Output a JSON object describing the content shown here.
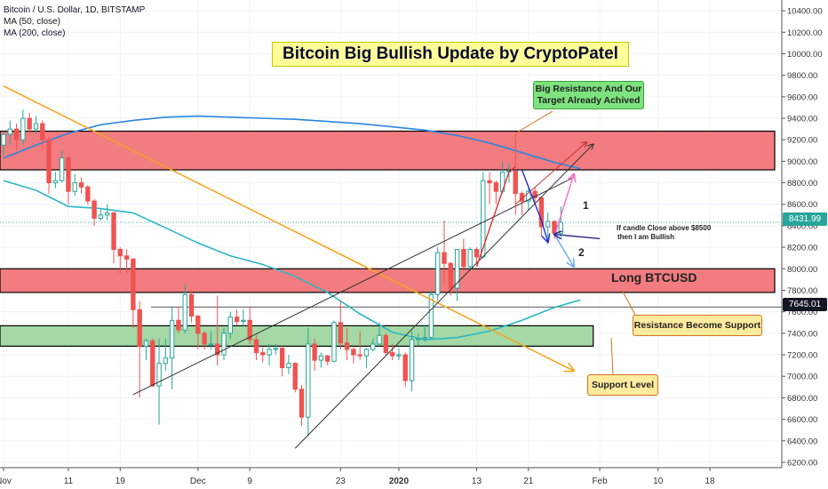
{
  "header": {
    "symbol_line": "Bitcoin / U.S. Dollar, 1D, BITSTAMP",
    "ma50_label": "MA (50, close)",
    "ma200_label": "MA (200, close)"
  },
  "annotations": {
    "title": "Bitcoin Big Bullish Update by CryptoPatel",
    "target_line1": "Big Resistance And Our",
    "target_line2": "Target Already Achived",
    "bullish_line1": "If candle Close above $8500",
    "bullish_line2": "then I am Bullish",
    "long_label": "Long BTCUSD",
    "resistance_support": "Resistance Become Support",
    "support_level": "Support Level",
    "wave1": "1",
    "wave2": "2"
  },
  "colors": {
    "up": "#26a69a",
    "down": "#ef5350",
    "ma50": "#2bb6c6",
    "ma200": "#2a86e0",
    "resistance_zone": "#f27c80",
    "support_zone": "#a4d8a4",
    "trendline_orange": "#f5a623"
  },
  "chart_data": {
    "type": "candlestick",
    "title": "",
    "y_range": [
      6150,
      10500
    ],
    "y_ticks": [
      6200,
      6400,
      6600,
      6800,
      7000,
      7200,
      7400,
      7600,
      7800,
      8000,
      8200,
      8400,
      8600,
      8800,
      9000,
      9200,
      9400,
      9600,
      9800,
      10000,
      10200,
      10400
    ],
    "y_tick_labels": [
      "6200.00",
      "6400.00",
      "6600.00",
      "6800.00",
      "7000.00",
      "7200.00",
      "7400.00",
      "7600.00",
      "7800.00",
      "8000.00",
      "8200.00",
      "8400.00",
      "8600.00",
      "8800.00",
      "9000.00",
      "9200.00",
      "9400.00",
      "9600.00",
      "9800.00",
      "10000.00",
      "10200.00",
      "10400.00"
    ],
    "x_range": [
      "2019-11-01",
      "2020-02-28"
    ],
    "x_ticks": [
      {
        "date": "2019-11-01",
        "label": "Nov"
      },
      {
        "date": "2019-11-11",
        "label": "11"
      },
      {
        "date": "2019-11-19",
        "label": "19"
      },
      {
        "date": "2019-12-01",
        "label": "Dec"
      },
      {
        "date": "2019-12-09",
        "label": "9"
      },
      {
        "date": "2019-12-23",
        "label": "23"
      },
      {
        "date": "2020-01-01",
        "label": "2020"
      },
      {
        "date": "2020-01-13",
        "label": "13"
      },
      {
        "date": "2020-01-21",
        "label": "21"
      },
      {
        "date": "2020-02-01",
        "label": "Feb"
      },
      {
        "date": "2020-02-10",
        "label": "10"
      },
      {
        "date": "2020-02-18",
        "label": "18"
      }
    ],
    "current_price": {
      "value": 8431.99,
      "label": "8431.99"
    },
    "level_price": {
      "value": 7645.01,
      "label": "7645.01"
    },
    "zones": [
      {
        "name": "resistance-zone-upper",
        "y": [
          8920,
          9280
        ],
        "x": [
          "2019-11-01",
          "2020-02-28"
        ]
      },
      {
        "name": "resistance-zone-lower",
        "y": [
          7780,
          8000
        ],
        "x": [
          "2019-11-01",
          "2020-02-28"
        ]
      },
      {
        "name": "support-zone",
        "y": [
          7280,
          7470
        ],
        "x": [
          "2019-11-01",
          "2020-01-31"
        ]
      }
    ],
    "candles": [
      {
        "d": "2019-11-01",
        "o": 9150,
        "h": 9280,
        "l": 9050,
        "c": 9250
      },
      {
        "d": "2019-11-02",
        "o": 9250,
        "h": 9380,
        "l": 9150,
        "c": 9300
      },
      {
        "d": "2019-11-03",
        "o": 9300,
        "h": 9350,
        "l": 9100,
        "c": 9200
      },
      {
        "d": "2019-11-04",
        "o": 9200,
        "h": 9480,
        "l": 9150,
        "c": 9400
      },
      {
        "d": "2019-11-05",
        "o": 9400,
        "h": 9450,
        "l": 9250,
        "c": 9300
      },
      {
        "d": "2019-11-06",
        "o": 9300,
        "h": 9420,
        "l": 9250,
        "c": 9350
      },
      {
        "d": "2019-11-07",
        "o": 9350,
        "h": 9380,
        "l": 9100,
        "c": 9200
      },
      {
        "d": "2019-11-08",
        "o": 9200,
        "h": 9230,
        "l": 8700,
        "c": 8800
      },
      {
        "d": "2019-11-09",
        "o": 8800,
        "h": 8900,
        "l": 8750,
        "c": 8820
      },
      {
        "d": "2019-11-10",
        "o": 8820,
        "h": 9100,
        "l": 8800,
        "c": 9030
      },
      {
        "d": "2019-11-11",
        "o": 9030,
        "h": 9050,
        "l": 8600,
        "c": 8720
      },
      {
        "d": "2019-11-12",
        "o": 8720,
        "h": 8880,
        "l": 8680,
        "c": 8800
      },
      {
        "d": "2019-11-13",
        "o": 8800,
        "h": 8850,
        "l": 8700,
        "c": 8760
      },
      {
        "d": "2019-11-14",
        "o": 8760,
        "h": 8780,
        "l": 8600,
        "c": 8630
      },
      {
        "d": "2019-11-15",
        "o": 8630,
        "h": 8650,
        "l": 8400,
        "c": 8470
      },
      {
        "d": "2019-11-16",
        "o": 8470,
        "h": 8550,
        "l": 8450,
        "c": 8500
      },
      {
        "d": "2019-11-17",
        "o": 8500,
        "h": 8600,
        "l": 8450,
        "c": 8520
      },
      {
        "d": "2019-11-18",
        "o": 8520,
        "h": 8530,
        "l": 8050,
        "c": 8180
      },
      {
        "d": "2019-11-19",
        "o": 8180,
        "h": 8200,
        "l": 7950,
        "c": 8120
      },
      {
        "d": "2019-11-20",
        "o": 8120,
        "h": 8180,
        "l": 7950,
        "c": 8090
      },
      {
        "d": "2019-11-21",
        "o": 8090,
        "h": 8100,
        "l": 7450,
        "c": 7620
      },
      {
        "d": "2019-11-22",
        "o": 7620,
        "h": 7700,
        "l": 6800,
        "c": 7280
      },
      {
        "d": "2019-11-23",
        "o": 7280,
        "h": 7350,
        "l": 7150,
        "c": 7330
      },
      {
        "d": "2019-11-24",
        "o": 7330,
        "h": 7350,
        "l": 6900,
        "c": 6910
      },
      {
        "d": "2019-11-25",
        "o": 6910,
        "h": 7350,
        "l": 6550,
        "c": 7120
      },
      {
        "d": "2019-11-26",
        "o": 7120,
        "h": 7350,
        "l": 7050,
        "c": 7170
      },
      {
        "d": "2019-11-27",
        "o": 7170,
        "h": 7650,
        "l": 6880,
        "c": 7520
      },
      {
        "d": "2019-11-28",
        "o": 7520,
        "h": 7650,
        "l": 7400,
        "c": 7430
      },
      {
        "d": "2019-11-29",
        "o": 7430,
        "h": 7860,
        "l": 7400,
        "c": 7760
      },
      {
        "d": "2019-11-30",
        "o": 7760,
        "h": 7800,
        "l": 7500,
        "c": 7560
      },
      {
        "d": "2019-12-01",
        "o": 7560,
        "h": 7570,
        "l": 7250,
        "c": 7400
      },
      {
        "d": "2019-12-02",
        "o": 7400,
        "h": 7420,
        "l": 7250,
        "c": 7300
      },
      {
        "d": "2019-12-03",
        "o": 7300,
        "h": 7420,
        "l": 7250,
        "c": 7300
      },
      {
        "d": "2019-12-04",
        "o": 7300,
        "h": 7750,
        "l": 7100,
        "c": 7200
      },
      {
        "d": "2019-12-05",
        "o": 7200,
        "h": 7450,
        "l": 7150,
        "c": 7400
      },
      {
        "d": "2019-12-06",
        "o": 7400,
        "h": 7600,
        "l": 7350,
        "c": 7550
      },
      {
        "d": "2019-12-07",
        "o": 7550,
        "h": 7620,
        "l": 7480,
        "c": 7510
      },
      {
        "d": "2019-12-08",
        "o": 7510,
        "h": 7620,
        "l": 7460,
        "c": 7520
      },
      {
        "d": "2019-12-09",
        "o": 7520,
        "h": 7650,
        "l": 7300,
        "c": 7340
      },
      {
        "d": "2019-12-10",
        "o": 7340,
        "h": 7380,
        "l": 7150,
        "c": 7220
      },
      {
        "d": "2019-12-11",
        "o": 7220,
        "h": 7270,
        "l": 7130,
        "c": 7200
      },
      {
        "d": "2019-12-12",
        "o": 7200,
        "h": 7300,
        "l": 7100,
        "c": 7250
      },
      {
        "d": "2019-12-13",
        "o": 7250,
        "h": 7300,
        "l": 7200,
        "c": 7260
      },
      {
        "d": "2019-12-14",
        "o": 7260,
        "h": 7290,
        "l": 7000,
        "c": 7080
      },
      {
        "d": "2019-12-15",
        "o": 7080,
        "h": 7200,
        "l": 7020,
        "c": 7120
      },
      {
        "d": "2019-12-16",
        "o": 7120,
        "h": 7130,
        "l": 6850,
        "c": 6880
      },
      {
        "d": "2019-12-17",
        "o": 6880,
        "h": 6920,
        "l": 6540,
        "c": 6620
      },
      {
        "d": "2019-12-18",
        "o": 6620,
        "h": 7450,
        "l": 6450,
        "c": 7300
      },
      {
        "d": "2019-12-19",
        "o": 7300,
        "h": 7350,
        "l": 7050,
        "c": 7150
      },
      {
        "d": "2019-12-20",
        "o": 7150,
        "h": 7220,
        "l": 7080,
        "c": 7190
      },
      {
        "d": "2019-12-21",
        "o": 7190,
        "h": 7200,
        "l": 7100,
        "c": 7140
      },
      {
        "d": "2019-12-22",
        "o": 7140,
        "h": 7520,
        "l": 7130,
        "c": 7500
      },
      {
        "d": "2019-12-23",
        "o": 7500,
        "h": 7700,
        "l": 7250,
        "c": 7310
      },
      {
        "d": "2019-12-24",
        "o": 7310,
        "h": 7450,
        "l": 7150,
        "c": 7250
      },
      {
        "d": "2019-12-25",
        "o": 7250,
        "h": 7270,
        "l": 7120,
        "c": 7200
      },
      {
        "d": "2019-12-26",
        "o": 7200,
        "h": 7420,
        "l": 7150,
        "c": 7190
      },
      {
        "d": "2019-12-27",
        "o": 7190,
        "h": 7260,
        "l": 7080,
        "c": 7250
      },
      {
        "d": "2019-12-28",
        "o": 7250,
        "h": 7350,
        "l": 7230,
        "c": 7300
      },
      {
        "d": "2019-12-29",
        "o": 7300,
        "h": 7500,
        "l": 7280,
        "c": 7380
      },
      {
        "d": "2019-12-30",
        "o": 7380,
        "h": 7400,
        "l": 7200,
        "c": 7220
      },
      {
        "d": "2019-12-31",
        "o": 7220,
        "h": 7300,
        "l": 7150,
        "c": 7190
      },
      {
        "d": "2020-01-01",
        "o": 7190,
        "h": 7260,
        "l": 7150,
        "c": 7200
      },
      {
        "d": "2020-01-02",
        "o": 7200,
        "h": 7220,
        "l": 6900,
        "c": 6960
      },
      {
        "d": "2020-01-03",
        "o": 6960,
        "h": 7420,
        "l": 6860,
        "c": 7340
      },
      {
        "d": "2020-01-04",
        "o": 7340,
        "h": 7400,
        "l": 7280,
        "c": 7350
      },
      {
        "d": "2020-01-05",
        "o": 7350,
        "h": 7480,
        "l": 7320,
        "c": 7360
      },
      {
        "d": "2020-01-06",
        "o": 7360,
        "h": 7800,
        "l": 7350,
        "c": 7760
      },
      {
        "d": "2020-01-07",
        "o": 7760,
        "h": 8200,
        "l": 7700,
        "c": 8150
      },
      {
        "d": "2020-01-08",
        "o": 8150,
        "h": 8450,
        "l": 7870,
        "c": 8050
      },
      {
        "d": "2020-01-09",
        "o": 8050,
        "h": 8060,
        "l": 7750,
        "c": 7820
      },
      {
        "d": "2020-01-10",
        "o": 7820,
        "h": 8180,
        "l": 7700,
        "c": 8180
      },
      {
        "d": "2020-01-11",
        "o": 8180,
        "h": 8280,
        "l": 8000,
        "c": 8020
      },
      {
        "d": "2020-01-12",
        "o": 8020,
        "h": 8200,
        "l": 7980,
        "c": 8180
      },
      {
        "d": "2020-01-13",
        "o": 8180,
        "h": 8200,
        "l": 8050,
        "c": 8110
      },
      {
        "d": "2020-01-14",
        "o": 8110,
        "h": 8900,
        "l": 8100,
        "c": 8820
      },
      {
        "d": "2020-01-15",
        "o": 8820,
        "h": 8900,
        "l": 8600,
        "c": 8800
      },
      {
        "d": "2020-01-16",
        "o": 8800,
        "h": 8820,
        "l": 8600,
        "c": 8720
      },
      {
        "d": "2020-01-17",
        "o": 8720,
        "h": 9000,
        "l": 8700,
        "c": 8900
      },
      {
        "d": "2020-01-18",
        "o": 8900,
        "h": 8980,
        "l": 8800,
        "c": 8910
      },
      {
        "d": "2020-01-19",
        "o": 8910,
        "h": 9180,
        "l": 8500,
        "c": 8700
      },
      {
        "d": "2020-01-20",
        "o": 8700,
        "h": 8720,
        "l": 8500,
        "c": 8630
      },
      {
        "d": "2020-01-21",
        "o": 8630,
        "h": 8750,
        "l": 8550,
        "c": 8720
      },
      {
        "d": "2020-01-22",
        "o": 8720,
        "h": 8760,
        "l": 8600,
        "c": 8660
      },
      {
        "d": "2020-01-23",
        "o": 8660,
        "h": 8670,
        "l": 8300,
        "c": 8390
      },
      {
        "d": "2020-01-24",
        "o": 8390,
        "h": 8520,
        "l": 8230,
        "c": 8440
      },
      {
        "d": "2020-01-25",
        "o": 8440,
        "h": 8450,
        "l": 8280,
        "c": 8330
      },
      {
        "d": "2020-01-26",
        "o": 8330,
        "h": 8580,
        "l": 8290,
        "c": 8432
      }
    ],
    "series": [
      {
        "name": "MA (50, close)",
        "color": "#2bb6c6",
        "points": [
          [
            "2019-11-01",
            8820
          ],
          [
            "2019-11-06",
            8730
          ],
          [
            "2019-11-11",
            8580
          ],
          [
            "2019-11-16",
            8560
          ],
          [
            "2019-11-21",
            8520
          ],
          [
            "2019-11-26",
            8380
          ],
          [
            "2019-12-01",
            8240
          ],
          [
            "2019-12-06",
            8120
          ],
          [
            "2019-12-11",
            8040
          ],
          [
            "2019-12-16",
            7930
          ],
          [
            "2019-12-21",
            7780
          ],
          [
            "2019-12-26",
            7580
          ],
          [
            "2019-12-31",
            7410
          ],
          [
            "2020-01-05",
            7340
          ],
          [
            "2020-01-10",
            7360
          ],
          [
            "2020-01-15",
            7420
          ],
          [
            "2020-01-20",
            7520
          ],
          [
            "2020-01-25",
            7640
          ],
          [
            "2020-01-29",
            7710
          ]
        ]
      },
      {
        "name": "MA (200, close)",
        "color": "#2a86e0",
        "points": [
          [
            "2019-11-01",
            9030
          ],
          [
            "2019-11-06",
            9150
          ],
          [
            "2019-11-11",
            9260
          ],
          [
            "2019-11-16",
            9340
          ],
          [
            "2019-11-21",
            9380
          ],
          [
            "2019-11-26",
            9410
          ],
          [
            "2019-12-01",
            9420
          ],
          [
            "2019-12-06",
            9410
          ],
          [
            "2019-12-11",
            9400
          ],
          [
            "2019-12-16",
            9390
          ],
          [
            "2019-12-21",
            9370
          ],
          [
            "2019-12-26",
            9350
          ],
          [
            "2019-12-31",
            9320
          ],
          [
            "2020-01-05",
            9290
          ],
          [
            "2020-01-10",
            9240
          ],
          [
            "2020-01-15",
            9170
          ],
          [
            "2020-01-20",
            9080
          ],
          [
            "2020-01-25",
            8990
          ],
          [
            "2020-01-29",
            8930
          ]
        ]
      }
    ],
    "trendlines": [
      {
        "name": "orange-downtrend-line",
        "color": "#f5a623",
        "from": [
          "2019-11-01",
          9700
        ],
        "to": [
          "2020-01-28",
          7050
        ],
        "arrow": true
      },
      {
        "name": "channel-upper-line",
        "color": "#333333",
        "from": [
          "2019-11-21",
          6830
        ],
        "to": [
          "2020-01-28",
          8850
        ],
        "arrow": false
      },
      {
        "name": "channel-lower-line",
        "color": "#333333",
        "from": [
          "2019-12-16",
          6330
        ],
        "to": [
          "2020-01-31",
          9160
        ],
        "arrow": true
      },
      {
        "name": "channel-mid-line",
        "color": "#c03030",
        "from": [
          "2020-01-19",
          8600
        ],
        "to": [
          "2020-01-30",
          9180
        ],
        "arrow": true
      }
    ],
    "drawn_paths": [
      {
        "name": "red-rally-path",
        "color": "#e03030",
        "points": [
          [
            "2020-01-13",
            8020
          ],
          [
            "2020-01-18",
            8900
          ],
          [
            "2020-01-19",
            8950
          ]
        ]
      },
      {
        "name": "blue-drop-path",
        "color": "#2a2ad0",
        "points": [
          [
            "2020-01-20",
            8920
          ],
          [
            "2020-01-23",
            8450
          ],
          [
            "2020-01-24",
            8250
          ]
        ]
      },
      {
        "name": "pink-bullish-projection",
        "color": "#ff66cc",
        "points": [
          [
            "2020-01-25",
            8300
          ],
          [
            "2020-01-28",
            8880
          ]
        ]
      },
      {
        "name": "light-blue-bearish-projection",
        "color": "#66aaee",
        "points": [
          [
            "2020-01-25",
            8320
          ],
          [
            "2020-01-28",
            8020
          ]
        ]
      },
      {
        "name": "navy-pointer",
        "color": "#2a2a90",
        "points": [
          [
            "2020-02-01",
            8280
          ],
          [
            "2020-01-25",
            8320
          ]
        ]
      }
    ]
  }
}
